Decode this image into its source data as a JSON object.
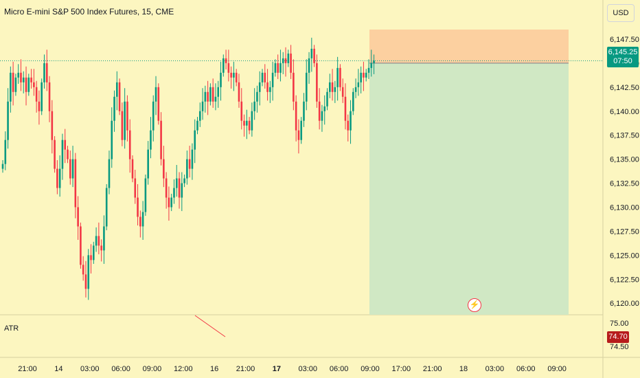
{
  "header": {
    "title": "Micro E-mini S&P 500 Index Futures, 15, CME",
    "currency_button": "USD"
  },
  "price_label": {
    "value": "6,145.25",
    "countdown": "07:50"
  },
  "atr": {
    "label": "ATR",
    "value": "74.70",
    "ticks": [
      "75.00",
      "74.50"
    ]
  },
  "colors": {
    "up": "#089981",
    "down": "#f23645",
    "background": "#fcf6c0",
    "target_zone": "#d0e8c4",
    "stop_zone": "#fcd0a0"
  },
  "chart_data": {
    "type": "candlestick",
    "yticks": [
      6147.5,
      6145.0,
      6142.5,
      6140.0,
      6137.5,
      6135.0,
      6132.5,
      6130.0,
      6127.5,
      6125.0,
      6122.5,
      6120.0
    ],
    "ytick_labels": [
      "6,147.50",
      "6,145.00",
      "6,142.50",
      "6,140.00",
      "6,137.50",
      "6,135.00",
      "6,132.50",
      "6,130.00",
      "6,127.50",
      "6,125.00",
      "6,122.50",
      "6,120.00"
    ],
    "xticks": [
      {
        "label": "21:00",
        "bar": 0,
        "bold": false
      },
      {
        "label": "14",
        "bar": 12,
        "bold": false
      },
      {
        "label": "03:00",
        "bar": 24,
        "bold": false
      },
      {
        "label": "06:00",
        "bar": 36,
        "bold": false
      },
      {
        "label": "09:00",
        "bar": 48,
        "bold": false
      },
      {
        "label": "12:00",
        "bar": 60,
        "bold": false
      },
      {
        "label": "16",
        "bar": 72,
        "bold": false
      },
      {
        "label": "21:00",
        "bar": 84,
        "bold": false
      },
      {
        "label": "17",
        "bar": 96,
        "bold": true
      },
      {
        "label": "03:00",
        "bar": 108,
        "bold": false
      },
      {
        "label": "06:00",
        "bar": 120,
        "bold": false
      },
      {
        "label": "09:00",
        "bar": 132,
        "bold": false
      },
      {
        "label": "17:00",
        "bar": 144,
        "bold": false
      },
      {
        "label": "21:00",
        "bar": 156,
        "bold": false
      },
      {
        "label": "18",
        "bar": 168,
        "bold": false
      },
      {
        "label": "03:00",
        "bar": 180,
        "bold": false
      },
      {
        "label": "06:00",
        "bar": 192,
        "bold": false
      },
      {
        "label": "09:00",
        "bar": 204,
        "bold": false
      }
    ],
    "last_price": 6145.25,
    "position": {
      "entry": 6145.0,
      "stop": 6148.5,
      "target": 6120.0
    },
    "closes": [
      6134.5,
      6137,
      6141,
      6144,
      6142,
      6143.5,
      6144,
      6143,
      6143.5,
      6142,
      6143.5,
      6143,
      6142.5,
      6141,
      6140,
      6143,
      6145,
      6143,
      6140,
      6137,
      6134,
      6132,
      6134,
      6137,
      6136,
      6135,
      6133,
      6135,
      6130,
      6128,
      6124,
      6123,
      6121.5,
      6125,
      6124.5,
      6126,
      6127,
      6126,
      6125.5,
      6128,
      6132,
      6135,
      6139,
      6141.5,
      6143,
      6140,
      6137,
      6141,
      6138,
      6135,
      6133,
      6131,
      6129,
      6128,
      6129.5,
      6133,
      6136,
      6138,
      6141,
      6142.5,
      6139,
      6135,
      6133,
      6131,
      6130,
      6131,
      6132,
      6133,
      6131,
      6132.5,
      6133,
      6135,
      6134,
      6136,
      6138,
      6139,
      6140,
      6141,
      6142,
      6141,
      6142.5,
      6141,
      6141.5,
      6142.5,
      6144,
      6145.5,
      6145,
      6144,
      6143.5,
      6144,
      6143,
      6141,
      6139,
      6138.5,
      6139,
      6138,
      6140,
      6141,
      6142,
      6143,
      6144,
      6143,
      6142,
      6142.5,
      6144,
      6145,
      6144,
      6145,
      6145.5,
      6145,
      6146,
      6144,
      6141,
      6138,
      6137,
      6139,
      6141,
      6144,
      6145.5,
      6146.5,
      6145,
      6141,
      6139,
      6140,
      6140.5,
      6142,
      6143,
      6142,
      6142.5,
      6144.5,
      6142.5,
      6141.5,
      6139,
      6138,
      6140,
      6142,
      6142.5,
      6143,
      6144,
      6143.5,
      6144,
      6144.5,
      6145,
      6145.25
    ]
  }
}
